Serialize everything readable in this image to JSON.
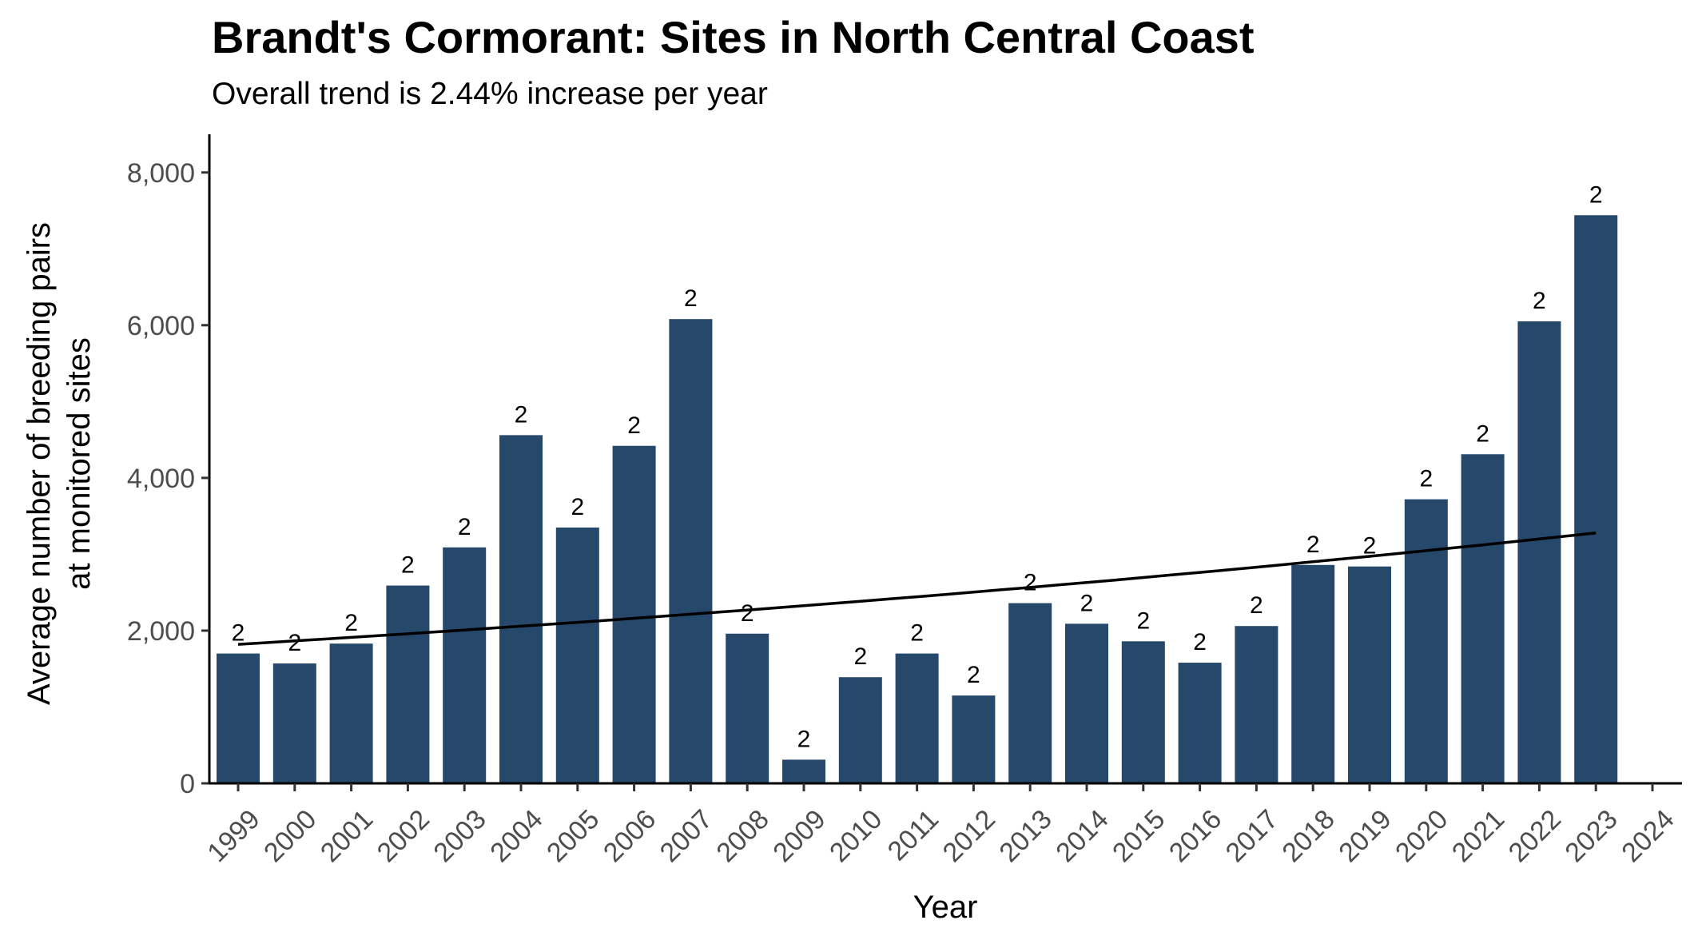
{
  "title": "Brandt's Cormorant: Sites in North Central Coast",
  "subtitle": "Overall trend is 2.44% increase per year",
  "chart_data": {
    "type": "bar",
    "title": "Brandt's Cormorant: Sites in North Central Coast",
    "subtitle": "Overall trend is 2.44% increase per year",
    "xlabel": "Year",
    "ylabel_lines": [
      "Average number of breeding pairs",
      "at monitored sites"
    ],
    "x_ticks": [
      "1999",
      "2000",
      "2001",
      "2002",
      "2003",
      "2004",
      "2005",
      "2006",
      "2007",
      "2008",
      "2009",
      "2010",
      "2011",
      "2012",
      "2013",
      "2014",
      "2015",
      "2016",
      "2017",
      "2018",
      "2019",
      "2020",
      "2021",
      "2022",
      "2023",
      "2024"
    ],
    "categories": [
      "1999",
      "2000",
      "2001",
      "2002",
      "2003",
      "2004",
      "2005",
      "2006",
      "2007",
      "2008",
      "2009",
      "2010",
      "2011",
      "2012",
      "2013",
      "2014",
      "2015",
      "2016",
      "2017",
      "2018",
      "2019",
      "2020",
      "2021",
      "2022",
      "2023"
    ],
    "values": [
      1700,
      1570,
      1830,
      2590,
      3090,
      4560,
      3350,
      4420,
      6080,
      1960,
      310,
      1390,
      1700,
      1150,
      2360,
      2090,
      1860,
      1580,
      2060,
      2860,
      2840,
      3720,
      4310,
      6050,
      7440
    ],
    "bar_labels": [
      "2",
      "2",
      "2",
      "2",
      "2",
      "2",
      "2",
      "2",
      "2",
      "2",
      "2",
      "2",
      "2",
      "2",
      "2",
      "2",
      "2",
      "2",
      "2",
      "2",
      "2",
      "2",
      "2",
      "2",
      "2"
    ],
    "trend": {
      "start_year": "1999",
      "end_year": "2023",
      "start_value": 1820,
      "end_value": 3280
    },
    "ylim": [
      0,
      8500
    ],
    "y_ticks": [
      0,
      2000,
      4000,
      6000,
      8000
    ],
    "y_tick_labels": [
      "0",
      "2,000",
      "4,000",
      "6,000",
      "8,000"
    ],
    "grid": false,
    "legend": "none",
    "bar_color": "#26486b",
    "trend_color": "#000000"
  }
}
